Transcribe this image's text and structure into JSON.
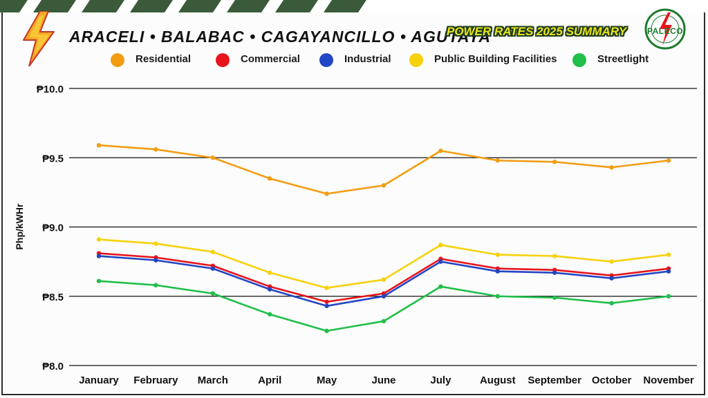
{
  "header": {
    "title": "ARACELI • BALABAC • CAGAYANCILLO • AGUTAYA",
    "summary": "POWER RATES 2025 SUMMARY",
    "logo_text": "PALECO"
  },
  "colors": {
    "residential": "#f39c12",
    "commercial": "#e8141c",
    "industrial": "#2346c4",
    "public_building": "#f7d10a",
    "streetlight": "#1fbf4a",
    "grid": "#111111",
    "accent_green": "#1f3b1f"
  },
  "chart_data": {
    "type": "line",
    "title": "ARACELI • BALABAC • CAGAYANCILLO • AGUTAYA",
    "subtitle": "POWER RATES 2025 SUMMARY",
    "xlabel": "",
    "ylabel": "Php/kWHr",
    "ylim": [
      8.0,
      10.0
    ],
    "yticks": [
      8.0,
      8.5,
      9.0,
      9.5,
      10.0
    ],
    "ytick_labels": [
      "₱8.0",
      "₱8.5",
      "₱9.0",
      "₱9.5",
      "₱10.0"
    ],
    "grid": true,
    "legend_position": "top",
    "categories": [
      "January",
      "February",
      "March",
      "April",
      "May",
      "June",
      "July",
      "August",
      "September",
      "October",
      "November"
    ],
    "series": [
      {
        "name": "Residential",
        "key": "residential",
        "values": [
          9.59,
          9.56,
          9.5,
          9.35,
          9.24,
          9.3,
          9.55,
          9.48,
          9.47,
          9.43,
          9.48
        ]
      },
      {
        "name": "Commercial",
        "key": "commercial",
        "values": [
          8.81,
          8.78,
          8.72,
          8.57,
          8.46,
          8.52,
          8.77,
          8.7,
          8.69,
          8.65,
          8.7
        ]
      },
      {
        "name": "Industrial",
        "key": "industrial",
        "values": [
          8.79,
          8.76,
          8.7,
          8.55,
          8.43,
          8.5,
          8.75,
          8.68,
          8.67,
          8.63,
          8.68
        ]
      },
      {
        "name": "Public Building Facilities",
        "key": "public_building",
        "values": [
          8.91,
          8.88,
          8.82,
          8.67,
          8.56,
          8.62,
          8.87,
          8.8,
          8.79,
          8.75,
          8.8
        ]
      },
      {
        "name": "Streetlight",
        "key": "streetlight",
        "values": [
          8.61,
          8.58,
          8.52,
          8.37,
          8.25,
          8.32,
          8.57,
          8.5,
          8.49,
          8.45,
          8.5
        ]
      }
    ]
  }
}
